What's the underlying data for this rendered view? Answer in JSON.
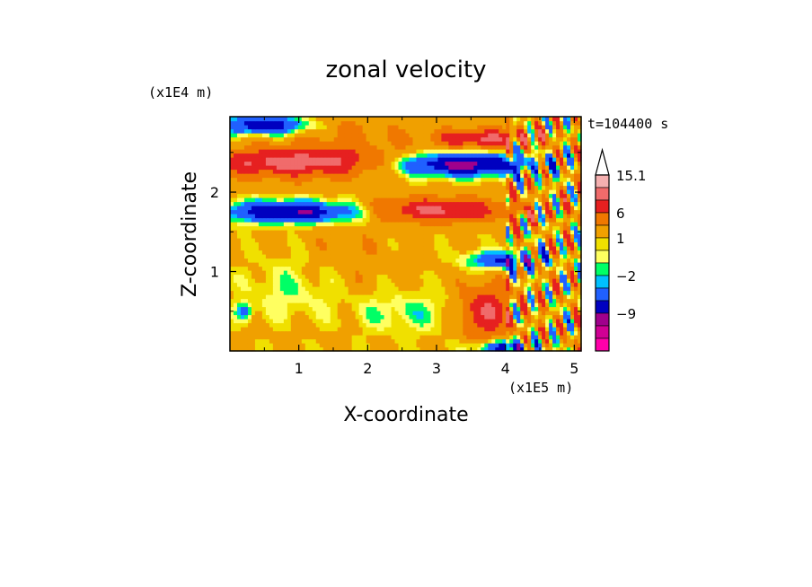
{
  "chart_data": {
    "type": "heatmap",
    "title": "zonal velocity",
    "xlabel": "X-coordinate",
    "ylabel": "Z-coordinate",
    "x_unit": "(x1E5 m)",
    "y_unit": "(x1E4 m)",
    "time_label": "t=104400 s",
    "xlim": [
      0.0,
      5.1
    ],
    "ylim": [
      0.0,
      2.95
    ],
    "x_ticks": [
      "1",
      "2",
      "3",
      "4",
      "5"
    ],
    "x_tick_values": [
      1,
      2,
      3,
      4,
      5
    ],
    "y_ticks": [
      "1",
      "2"
    ],
    "y_tick_values": [
      1,
      2
    ],
    "colorbar": {
      "labels": [
        "15.1",
        "6",
        "1",
        "−2",
        "−9"
      ],
      "levels_top_to_bottom": [
        15.1,
        12,
        9,
        6,
        3,
        1,
        0,
        -1,
        -2,
        -3,
        -6,
        -9,
        -12,
        -15
      ],
      "colors_top_to_bottom": [
        "#f5b0b0",
        "#f06b6b",
        "#e62020",
        "#f07800",
        "#f0a000",
        "#f0e000",
        "#ffff60",
        "#00ff66",
        "#00c0ff",
        "#2060ff",
        "#0000c0",
        "#a0008c",
        "#d00094",
        "#ff00aa"
      ]
    },
    "bands": [
      {
        "z": 2.85,
        "kind": "neg",
        "note": "upper blue band near x=0.2-0.6"
      },
      {
        "z": 2.35,
        "kind": "pos",
        "note": "orange band x=0-2"
      },
      {
        "z": 1.75,
        "kind": "neg",
        "note": "blue band x=0-2"
      },
      {
        "z": 2.35,
        "kind": "neg",
        "note": "dark blue band x=2.5-4.2"
      },
      {
        "z": 1.75,
        "kind": "pos",
        "note": "orange band x=2.1-3.8"
      },
      {
        "z": 2.65,
        "kind": "pos",
        "note": "orange band x=3.2-4.2"
      }
    ]
  }
}
